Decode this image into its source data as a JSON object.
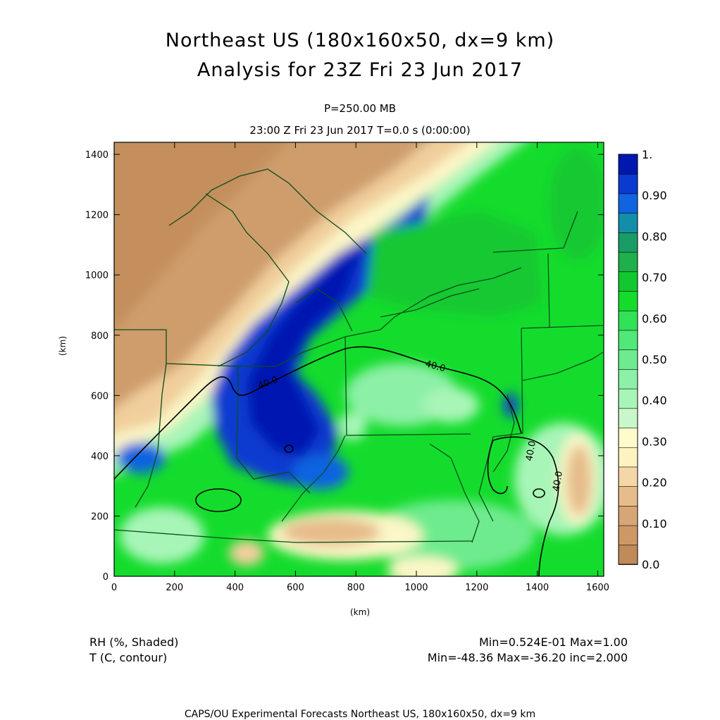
{
  "title": {
    "line1": "Northeast US (180x160x50, dx=9 km)",
    "line2": "Analysis for 23Z Fri 23 Jun 2017"
  },
  "level": "P=250.00 MB",
  "timeline": "23:00 Z Fri 23 Jun 2017    T=0.0 s (0:00:00)",
  "axes": {
    "xlabel": "(km)",
    "ylabel": "(km)",
    "xticks": [
      "0",
      "200",
      "400",
      "600",
      "800",
      "1000",
      "1200",
      "1400",
      "1600"
    ],
    "yticks": [
      "0",
      "200",
      "400",
      "600",
      "800",
      "1000",
      "1200",
      "1400"
    ]
  },
  "colorbar": {
    "labels": [
      "1.",
      "0.90",
      "0.80",
      "0.70",
      "0.60",
      "0.50",
      "0.40",
      "0.30",
      "0.20",
      "0.10",
      "0.0"
    ],
    "colors": [
      "#c08a5a",
      "#cd9866",
      "#d6a676",
      "#e6bc8a",
      "#f5d6a6",
      "#fdf3c0",
      "#fffccc",
      "#c9f7c9",
      "#a8f5b8",
      "#8cf0a6",
      "#6eeb8e",
      "#50e878",
      "#2fe256",
      "#14dc2c",
      "#12c830",
      "#1eb04a",
      "#1a9c66",
      "#138ea8",
      "#1164e0",
      "#0a3ad0",
      "#0018b0"
    ]
  },
  "contour_labels": [
    "40.0",
    "40.0",
    "40.0",
    "40.0"
  ],
  "field_labels": {
    "line1": "RH (%, Shaded)",
    "line2": "T (C, contour)"
  },
  "stats": {
    "line1": "Min=0.524E-01  Max=1.00",
    "line2": "Min=-48.36  Max=-36.20  inc=2.000"
  },
  "footer": "CAPS/OU Experimental Forecasts  Northeast US, 180x160x50, dx=9 km"
}
